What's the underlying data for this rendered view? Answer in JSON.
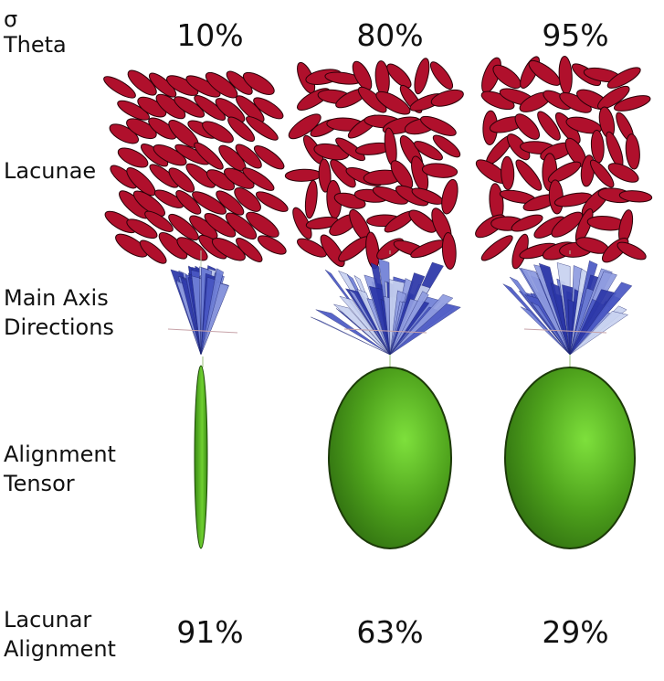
{
  "row_labels": {
    "sigma_symbol": "σ",
    "sigma_theta": "Theta",
    "lacunae": "Lacunae",
    "main_axis_line1": "Main Axis",
    "main_axis_line2": "Directions",
    "alignment_line1": "Alignment",
    "alignment_line2": "Tensor",
    "lacunar_line1": "Lacunar",
    "lacunar_line2": "Alignment"
  },
  "columns": [
    {
      "sigma_theta": "10%",
      "lacunar_alignment": "91%",
      "theta_spread": 0.1,
      "tensor_shape": "needle"
    },
    {
      "sigma_theta": "80%",
      "lacunar_alignment": "63%",
      "theta_spread": 0.8,
      "tensor_shape": "ellipsoid"
    },
    {
      "sigma_theta": "95%",
      "lacunar_alignment": "29%",
      "theta_spread": 0.95,
      "tensor_shape": "ellipsoid"
    }
  ],
  "colors": {
    "lacuna_fill": "#b0102c",
    "lacuna_edge": "#2a0008",
    "fan_light": "#c8d2f0",
    "fan_mid": "#6f7fd6",
    "fan_dark": "#2b36a8",
    "tensor_light": "#7ee03c",
    "tensor_dark": "#2f6e10"
  }
}
